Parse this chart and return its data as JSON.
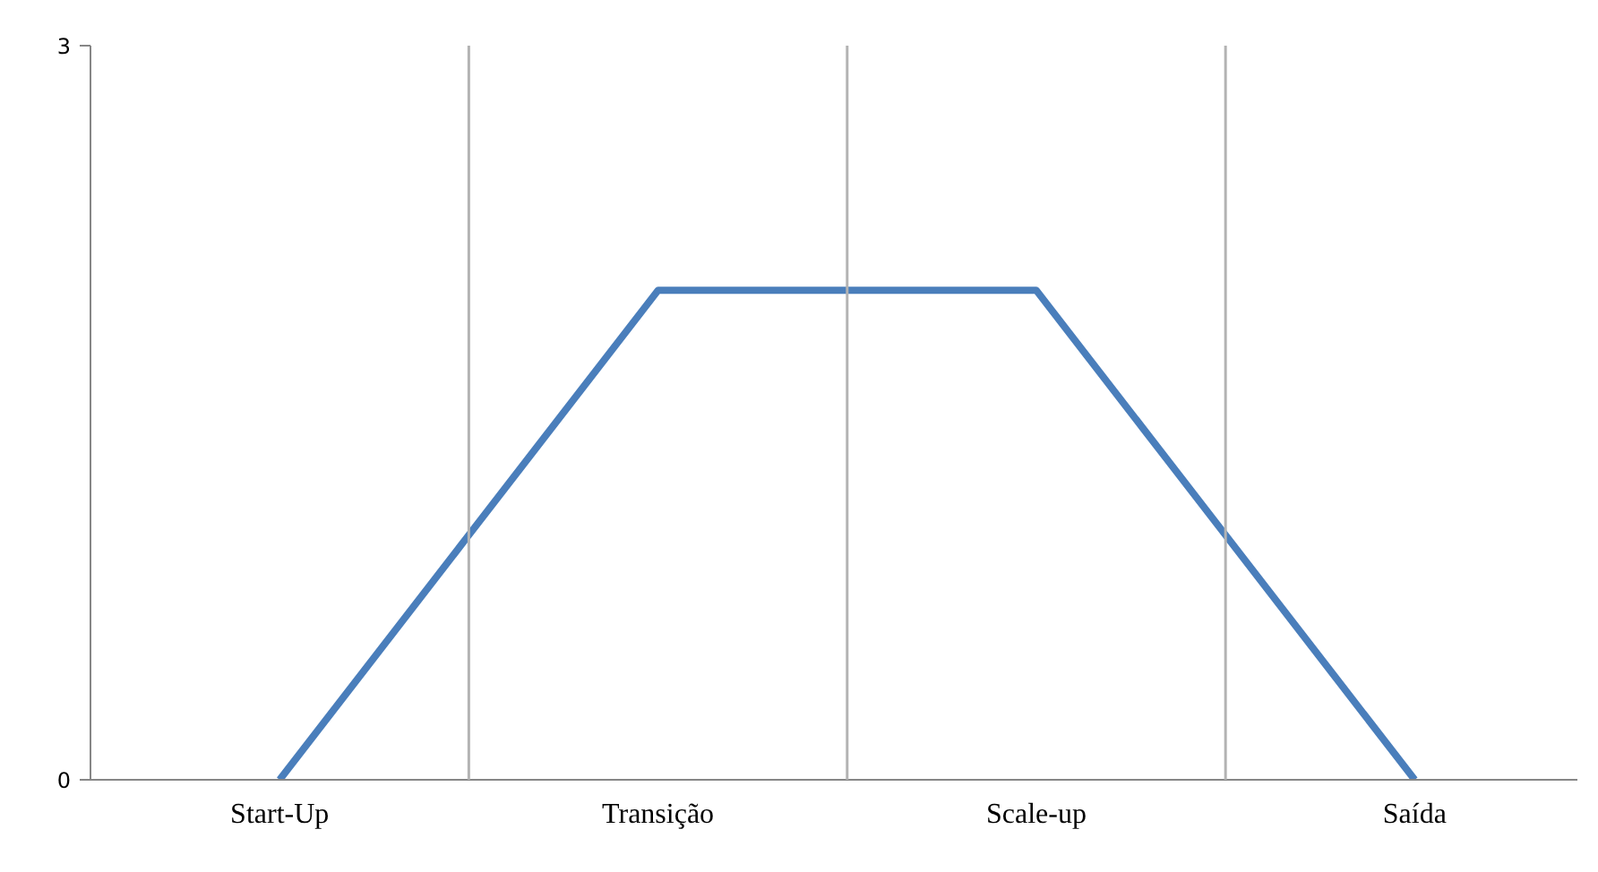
{
  "chart_data": {
    "type": "line",
    "categories": [
      "Start-Up",
      null,
      "Transição",
      null,
      "Scale-up",
      null,
      "Saída"
    ],
    "series": [
      {
        "color": "#4a7ebb",
        "values": [
          0,
          1,
          2,
          2,
          2,
          1,
          0
        ]
      }
    ],
    "ylim": [
      0,
      3
    ],
    "yticks": [
      0,
      3
    ],
    "grid": "x",
    "marker": "none",
    "line_style": "solid"
  }
}
